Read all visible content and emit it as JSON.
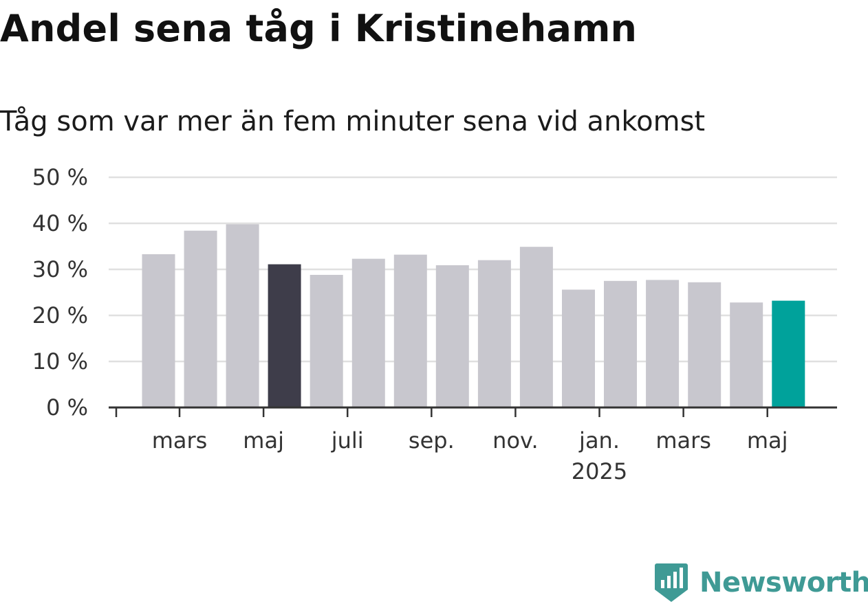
{
  "title": "Andel sena tåg i Kristinehamn",
  "subtitle": "Tåg som var mer än fem minuter sena vid ankomst",
  "brand": {
    "name": "Newsworthy",
    "color": "#3f9a95",
    "icon": "bar-chart-badge-icon"
  },
  "colors": {
    "bar": "#c8c7ce",
    "highlight_dark": "#3e3d4a",
    "highlight_accent": "#00a29b",
    "axis": "#333333",
    "grid": "#e0e0e0"
  },
  "chart_data": {
    "type": "bar",
    "categories": [
      "2024-02",
      "2024-03",
      "2024-04",
      "2024-05",
      "2024-06",
      "2024-07",
      "2024-08",
      "2024-09",
      "2024-10",
      "2024-11",
      "2024-12",
      "2025-01",
      "2025-02",
      "2025-03",
      "2025-04",
      "2025-05"
    ],
    "values": [
      33.3,
      38.4,
      39.8,
      31.1,
      28.8,
      32.3,
      33.2,
      30.9,
      32.0,
      34.9,
      25.6,
      27.5,
      27.7,
      27.2,
      22.8,
      23.2
    ],
    "highlight": {
      "2024-05": "highlight_dark",
      "2025-05": "highlight_accent"
    },
    "ylim": [
      0,
      50
    ],
    "y_ticks": [
      0,
      10,
      20,
      30,
      40,
      50
    ],
    "y_tick_labels": [
      "0 %",
      "10 %",
      "20 %",
      "30 %",
      "40 %",
      "50 %"
    ],
    "x_tick_labels": [
      {
        "month": "2024-03",
        "label": "mars"
      },
      {
        "month": "2024-05",
        "label": "maj"
      },
      {
        "month": "2024-07",
        "label": "juli"
      },
      {
        "month": "2024-09",
        "label": "sep."
      },
      {
        "month": "2024-11",
        "label": "nov."
      },
      {
        "month": "2025-01",
        "label": "jan.",
        "label2": "2025"
      },
      {
        "month": "2025-03",
        "label": "mars"
      },
      {
        "month": "2025-05",
        "label": "maj"
      }
    ],
    "grid": true,
    "xlabel": "",
    "ylabel": ""
  }
}
